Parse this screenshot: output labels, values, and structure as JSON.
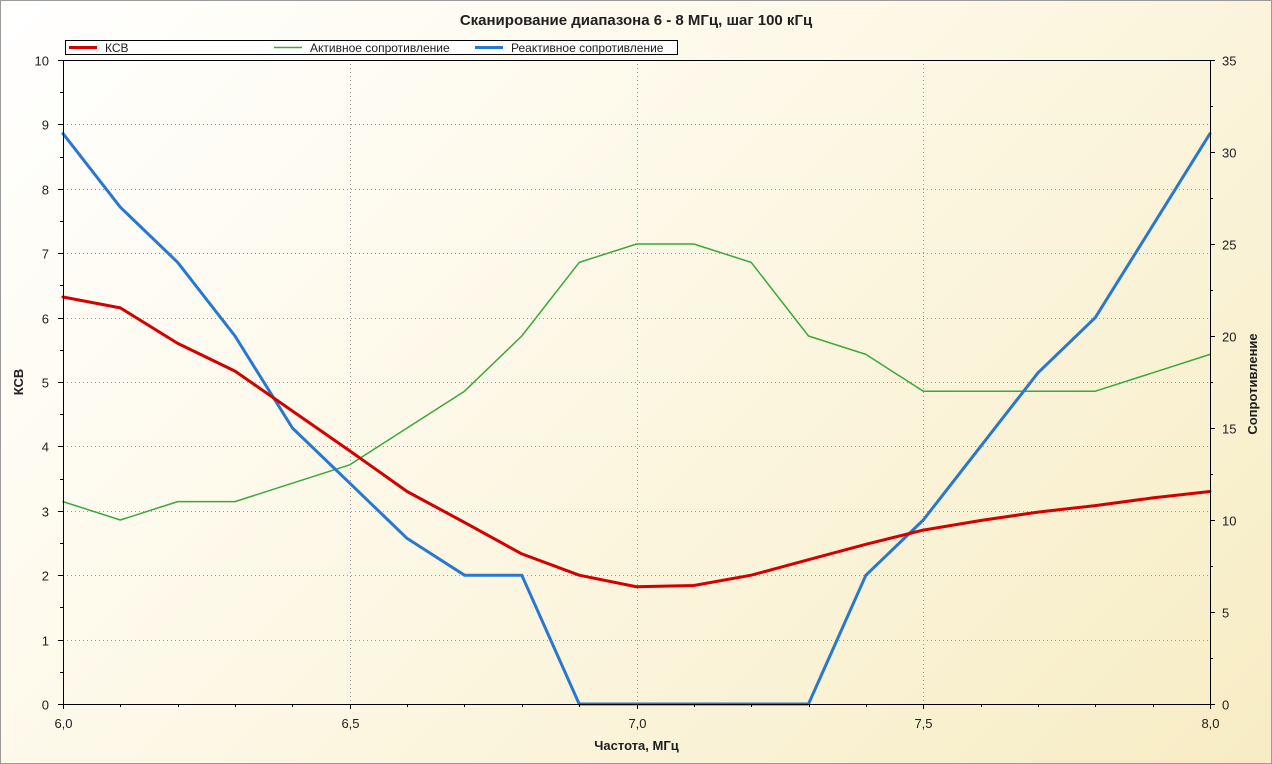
{
  "chart_data": {
    "type": "line",
    "title": "Сканирование диапазона 6 - 8 МГц, шаг 100 кГц",
    "xlabel": "Частота, МГц",
    "ylabel": "КСВ",
    "y2label": "Сопротивление",
    "xlim": [
      6.0,
      8.0
    ],
    "ylim": [
      0,
      10
    ],
    "y2lim": [
      0,
      35
    ],
    "xticks": [
      "6,0",
      "6,5",
      "7,0",
      "7,5",
      "8,0"
    ],
    "xtick_values": [
      6.0,
      6.5,
      7.0,
      7.5,
      8.0
    ],
    "yticks": [
      "0",
      "1",
      "2",
      "3",
      "4",
      "5",
      "6",
      "7",
      "8",
      "9",
      "10"
    ],
    "y2ticks": [
      "0",
      "5",
      "10",
      "15",
      "20",
      "25",
      "30",
      "35"
    ],
    "grid": true,
    "legend_position": "top",
    "x": [
      6.0,
      6.1,
      6.2,
      6.3,
      6.4,
      6.5,
      6.6,
      6.7,
      6.8,
      6.9,
      7.0,
      7.1,
      7.2,
      7.3,
      7.4,
      7.5,
      7.6,
      7.7,
      7.8,
      7.9,
      8.0
    ],
    "series": [
      {
        "name": "КСВ",
        "axis": "left",
        "color": "#d40000",
        "values": [
          6.32,
          6.15,
          5.6,
          5.17,
          4.55,
          3.93,
          3.3,
          2.82,
          2.33,
          2.0,
          1.82,
          1.84,
          2.0,
          2.24,
          2.48,
          2.7,
          2.85,
          2.98,
          3.08,
          3.2,
          3.3
        ]
      },
      {
        "name": "Активное сопротивление",
        "axis": "right",
        "color": "#3aa83a",
        "values": [
          11,
          10,
          11,
          11,
          12,
          13,
          15,
          17,
          20,
          24,
          25,
          25,
          24,
          20,
          19,
          17,
          17,
          17,
          17,
          18,
          19
        ]
      },
      {
        "name": "Реактивное сопротивление",
        "axis": "right",
        "color": "#2878d0",
        "values": [
          31,
          27,
          24,
          20,
          15,
          12,
          9,
          7,
          7,
          0,
          0,
          0,
          0,
          0,
          7,
          10,
          14,
          18,
          21,
          26,
          31
        ]
      }
    ]
  }
}
